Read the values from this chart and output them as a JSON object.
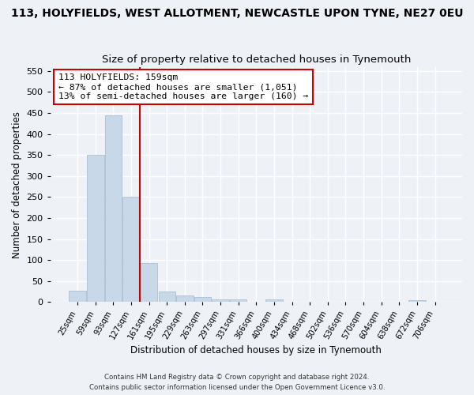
{
  "title": "113, HOLYFIELDS, WEST ALLOTMENT, NEWCASTLE UPON TYNE, NE27 0EU",
  "subtitle": "Size of property relative to detached houses in Tynemouth",
  "xlabel": "Distribution of detached houses by size in Tynemouth",
  "ylabel": "Number of detached properties",
  "bar_color": "#c8d8e8",
  "bar_edge_color": "#a0b8d0",
  "background_color": "#eef2f7",
  "grid_color": "#ffffff",
  "bin_labels": [
    "25sqm",
    "59sqm",
    "93sqm",
    "127sqm",
    "161sqm",
    "195sqm",
    "229sqm",
    "263sqm",
    "297sqm",
    "331sqm",
    "366sqm",
    "400sqm",
    "434sqm",
    "468sqm",
    "502sqm",
    "536sqm",
    "570sqm",
    "604sqm",
    "638sqm",
    "672sqm",
    "706sqm"
  ],
  "bar_heights": [
    28,
    350,
    445,
    250,
    93,
    25,
    15,
    12,
    7,
    6,
    0,
    6,
    0,
    0,
    0,
    0,
    0,
    0,
    0,
    5,
    0
  ],
  "property_line_x": 3.5,
  "annotation_text": "113 HOLYFIELDS: 159sqm\n← 87% of detached houses are smaller (1,051)\n13% of semi-detached houses are larger (160) →",
  "annotation_box_color": "#ffffff",
  "annotation_box_edge_color": "#cc0000",
  "red_line_color": "#cc0000",
  "ylim": [
    0,
    560
  ],
  "yticks": [
    0,
    50,
    100,
    150,
    200,
    250,
    300,
    350,
    400,
    450,
    500,
    550
  ],
  "footnote1": "Contains HM Land Registry data © Crown copyright and database right 2024.",
  "footnote2": "Contains public sector information licensed under the Open Government Licence v3.0.",
  "title_fontsize": 10,
  "subtitle_fontsize": 9.5,
  "bar_width": 0.95
}
